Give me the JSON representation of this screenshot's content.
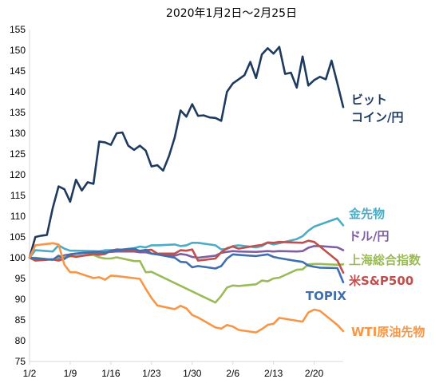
{
  "chart_data": {
    "type": "line",
    "title": "2020年1月2日～2月25日",
    "xlabel": "",
    "ylabel": "",
    "ylim": [
      75,
      155
    ],
    "yticks": [
      75,
      80,
      85,
      90,
      95,
      100,
      105,
      110,
      115,
      120,
      125,
      130,
      135,
      140,
      145,
      150,
      155
    ],
    "x_range": [
      "2020-01-02",
      "2020-02-25"
    ],
    "x_ticks": [
      {
        "date": "2020-01-02",
        "label": "1/2"
      },
      {
        "date": "2020-01-09",
        "label": "1/9"
      },
      {
        "date": "2020-01-16",
        "label": "1/16"
      },
      {
        "date": "2020-01-23",
        "label": "1/23"
      },
      {
        "date": "2020-01-30",
        "label": "1/30"
      },
      {
        "date": "2020-02-06",
        "label": "2/6"
      },
      {
        "date": "2020-02-13",
        "label": "2/13"
      },
      {
        "date": "2020-02-20",
        "label": "2/20"
      }
    ],
    "grid": false,
    "legend": "direct labels at right end of each line",
    "series": [
      {
        "name": "ビットコイン/円",
        "label_lines": [
          "ビット",
          "コイン/円"
        ],
        "color": "#1F3A5F",
        "x": [
          "2020-01-02",
          "2020-01-03",
          "2020-01-04",
          "2020-01-05",
          "2020-01-06",
          "2020-01-07",
          "2020-01-08",
          "2020-01-09",
          "2020-01-10",
          "2020-01-11",
          "2020-01-12",
          "2020-01-13",
          "2020-01-14",
          "2020-01-15",
          "2020-01-16",
          "2020-01-17",
          "2020-01-18",
          "2020-01-19",
          "2020-01-20",
          "2020-01-21",
          "2020-01-22",
          "2020-01-23",
          "2020-01-24",
          "2020-01-25",
          "2020-01-26",
          "2020-01-27",
          "2020-01-28",
          "2020-01-29",
          "2020-01-30",
          "2020-01-31",
          "2020-02-01",
          "2020-02-02",
          "2020-02-03",
          "2020-02-04",
          "2020-02-05",
          "2020-02-06",
          "2020-02-07",
          "2020-02-08",
          "2020-02-09",
          "2020-02-10",
          "2020-02-11",
          "2020-02-12",
          "2020-02-13",
          "2020-02-14",
          "2020-02-15",
          "2020-02-16",
          "2020-02-17",
          "2020-02-18",
          "2020-02-19",
          "2020-02-20",
          "2020-02-21",
          "2020-02-22",
          "2020-02-23",
          "2020-02-24",
          "2020-02-25"
        ],
        "values": [
          100,
          105,
          105.3,
          105.5,
          112,
          117.2,
          116.5,
          113.5,
          118.8,
          116.2,
          118.2,
          117.8,
          128,
          127.8,
          127.2,
          130,
          130.2,
          127,
          126,
          127,
          125.8,
          122,
          122.3,
          121,
          124.5,
          129,
          135.5,
          134,
          137,
          134.2,
          134.3,
          133.8,
          133.7,
          133,
          140,
          142,
          143,
          144,
          147.2,
          143.3,
          149,
          150.5,
          149.2,
          150.8,
          144.3,
          144.6,
          141,
          148.5,
          141.5,
          142.8,
          143.6,
          143,
          147.5,
          142,
          136.3
        ]
      },
      {
        "name": "金先物",
        "color": "#4BACC6",
        "x": [
          "2020-01-02",
          "2020-01-03",
          "2020-01-06",
          "2020-01-07",
          "2020-01-08",
          "2020-01-09",
          "2020-01-10",
          "2020-01-13",
          "2020-01-14",
          "2020-01-15",
          "2020-01-16",
          "2020-01-17",
          "2020-01-20",
          "2020-01-21",
          "2020-01-22",
          "2020-01-23",
          "2020-01-24",
          "2020-01-27",
          "2020-01-28",
          "2020-01-29",
          "2020-01-30",
          "2020-01-31",
          "2020-02-03",
          "2020-02-04",
          "2020-02-05",
          "2020-02-06",
          "2020-02-07",
          "2020-02-10",
          "2020-02-11",
          "2020-02-12",
          "2020-02-13",
          "2020-02-14",
          "2020-02-17",
          "2020-02-18",
          "2020-02-19",
          "2020-02-20",
          "2020-02-21",
          "2020-02-24",
          "2020-02-25"
        ],
        "values": [
          100,
          101.8,
          101.5,
          103,
          102.2,
          101.7,
          101.7,
          101.6,
          101.5,
          101.8,
          101.8,
          101.8,
          102.3,
          102.7,
          102.5,
          103,
          103,
          103.2,
          102.8,
          103,
          103.6,
          103.6,
          103,
          102,
          102.1,
          102.8,
          103,
          102.5,
          102.8,
          103.6,
          103.2,
          103.5,
          104.5,
          105.2,
          106.5,
          107.5,
          108,
          109.5,
          107.8
        ]
      },
      {
        "name": "ドル/円",
        "color": "#7F5FA0",
        "x": [
          "2020-01-02",
          "2020-01-03",
          "2020-01-06",
          "2020-01-07",
          "2020-01-08",
          "2020-01-09",
          "2020-01-10",
          "2020-01-13",
          "2020-01-14",
          "2020-01-15",
          "2020-01-16",
          "2020-01-17",
          "2020-01-20",
          "2020-01-21",
          "2020-01-22",
          "2020-01-23",
          "2020-01-24",
          "2020-01-27",
          "2020-01-28",
          "2020-01-29",
          "2020-01-30",
          "2020-01-31",
          "2020-02-03",
          "2020-02-04",
          "2020-02-05",
          "2020-02-06",
          "2020-02-07",
          "2020-02-10",
          "2020-02-11",
          "2020-02-12",
          "2020-02-13",
          "2020-02-14",
          "2020-02-17",
          "2020-02-18",
          "2020-02-19",
          "2020-02-20",
          "2020-02-21",
          "2020-02-24",
          "2020-02-25"
        ],
        "values": [
          100,
          99.7,
          99.6,
          99.8,
          100.6,
          100.8,
          101,
          101.3,
          101.2,
          101.3,
          101.4,
          101.5,
          101.5,
          101.3,
          101.3,
          101,
          100.8,
          100.5,
          100.9,
          100.7,
          100.2,
          100,
          100.5,
          101.2,
          101.4,
          101.6,
          101.5,
          101.4,
          101.5,
          101.6,
          101.5,
          101.6,
          101.5,
          101.6,
          102.4,
          102.8,
          102.8,
          102.5,
          101.8
        ]
      },
      {
        "name": "上海総合指数",
        "color": "#9BBB59",
        "x": [
          "2020-01-02",
          "2020-01-03",
          "2020-01-06",
          "2020-01-07",
          "2020-01-08",
          "2020-01-09",
          "2020-01-10",
          "2020-01-13",
          "2020-01-14",
          "2020-01-15",
          "2020-01-16",
          "2020-01-17",
          "2020-01-20",
          "2020-01-21",
          "2020-01-22",
          "2020-01-23",
          "2020-02-03",
          "2020-02-04",
          "2020-02-05",
          "2020-02-06",
          "2020-02-07",
          "2020-02-10",
          "2020-02-11",
          "2020-02-12",
          "2020-02-13",
          "2020-02-14",
          "2020-02-17",
          "2020-02-18",
          "2020-02-19",
          "2020-02-20",
          "2020-02-21",
          "2020-02-24",
          "2020-02-25"
        ],
        "values": [
          100,
          100,
          99.5,
          100.1,
          100.2,
          100.3,
          100.4,
          100.7,
          100.1,
          99.8,
          99.8,
          100.1,
          99.2,
          99.2,
          96.5,
          96.6,
          89.2,
          90.8,
          92.8,
          93.3,
          93.2,
          93.6,
          94.5,
          94.3,
          95,
          95.2,
          97.1,
          97.2,
          98.4,
          98.5,
          98.5,
          98.3,
          98.4
        ]
      },
      {
        "name": "米S&P500",
        "color": "#C0504D",
        "x": [
          "2020-01-02",
          "2020-01-03",
          "2020-01-06",
          "2020-01-07",
          "2020-01-08",
          "2020-01-09",
          "2020-01-10",
          "2020-01-13",
          "2020-01-14",
          "2020-01-15",
          "2020-01-16",
          "2020-01-17",
          "2020-01-21",
          "2020-01-22",
          "2020-01-23",
          "2020-01-24",
          "2020-01-27",
          "2020-01-28",
          "2020-01-29",
          "2020-01-30",
          "2020-01-31",
          "2020-02-03",
          "2020-02-04",
          "2020-02-05",
          "2020-02-06",
          "2020-02-07",
          "2020-02-10",
          "2020-02-11",
          "2020-02-12",
          "2020-02-13",
          "2020-02-14",
          "2020-02-18",
          "2020-02-19",
          "2020-02-20",
          "2020-02-21",
          "2020-02-24",
          "2020-02-25"
        ],
        "values": [
          100,
          99.3,
          99.6,
          99.3,
          99.8,
          100.5,
          100.2,
          100.9,
          100.7,
          100.9,
          101.7,
          102,
          101.7,
          101.8,
          101.9,
          101,
          101,
          101.8,
          101.7,
          102,
          99.3,
          99.8,
          101.3,
          102.3,
          102.7,
          102.2,
          102.9,
          103.1,
          103.7,
          103.6,
          103.8,
          103.6,
          104.1,
          103.8,
          102.7,
          99.3,
          96.4
        ]
      },
      {
        "name": "TOPIX",
        "color": "#3F6FAF",
        "x": [
          "2020-01-02",
          "2020-01-06",
          "2020-01-07",
          "2020-01-08",
          "2020-01-09",
          "2020-01-10",
          "2020-01-14",
          "2020-01-15",
          "2020-01-16",
          "2020-01-17",
          "2020-01-20",
          "2020-01-21",
          "2020-01-22",
          "2020-01-23",
          "2020-01-24",
          "2020-01-27",
          "2020-01-28",
          "2020-01-29",
          "2020-01-30",
          "2020-01-31",
          "2020-02-03",
          "2020-02-04",
          "2020-02-05",
          "2020-02-06",
          "2020-02-07",
          "2020-02-10",
          "2020-02-12",
          "2020-02-13",
          "2020-02-14",
          "2020-02-17",
          "2020-02-18",
          "2020-02-19",
          "2020-02-20",
          "2020-02-21",
          "2020-02-24",
          "2020-02-25"
        ],
        "values": [
          100,
          99.5,
          100.5,
          99.7,
          100.8,
          101,
          101.5,
          101.1,
          101.7,
          101.8,
          102.2,
          101.6,
          101.9,
          101,
          100.8,
          100,
          99,
          98.9,
          97.7,
          98,
          97.4,
          98,
          99.8,
          100.8,
          100.7,
          100.4,
          100.8,
          100.2,
          99.9,
          99.2,
          99,
          98.1,
          97.8,
          97.6,
          97.5,
          94.1
        ]
      },
      {
        "name": "WTI原油先物",
        "color": "#F79646",
        "x": [
          "2020-01-02",
          "2020-01-03",
          "2020-01-06",
          "2020-01-07",
          "2020-01-08",
          "2020-01-09",
          "2020-01-10",
          "2020-01-13",
          "2020-01-14",
          "2020-01-15",
          "2020-01-16",
          "2020-01-17",
          "2020-01-21",
          "2020-01-22",
          "2020-01-23",
          "2020-01-24",
          "2020-01-27",
          "2020-01-28",
          "2020-01-29",
          "2020-01-30",
          "2020-01-31",
          "2020-02-03",
          "2020-02-04",
          "2020-02-05",
          "2020-02-06",
          "2020-02-07",
          "2020-02-10",
          "2020-02-11",
          "2020-02-12",
          "2020-02-13",
          "2020-02-14",
          "2020-02-18",
          "2020-02-19",
          "2020-02-20",
          "2020-02-21",
          "2020-02-24",
          "2020-02-25"
        ],
        "values": [
          100,
          103,
          103.5,
          103.2,
          98.3,
          96.5,
          96.5,
          95.1,
          95.3,
          94.7,
          95.7,
          95.6,
          94.9,
          92.5,
          90.3,
          88.5,
          87.6,
          88.4,
          87.8,
          86.2,
          85.6,
          83.2,
          82.9,
          83.8,
          83.4,
          82.6,
          82,
          82.8,
          83.8,
          84.1,
          85.5,
          84.6,
          86.8,
          87.5,
          87.2,
          83.8,
          82.3
        ]
      }
    ]
  }
}
